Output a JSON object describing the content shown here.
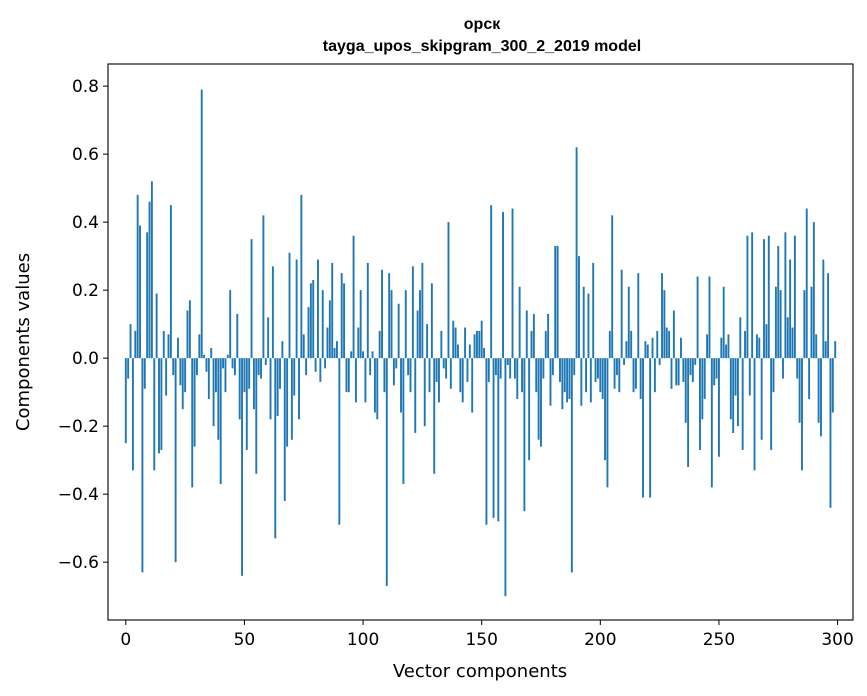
{
  "chart_data": {
    "type": "bar",
    "title": "орск",
    "subtitle": "tayga_upos_skipgram_300_2_2019 model",
    "xlabel": "Vector components",
    "ylabel": "Components values",
    "xlim": [
      -7.5,
      306.5
    ],
    "ylim": [
      -0.77,
      0.865
    ],
    "xticks": [
      0,
      50,
      100,
      150,
      200,
      250,
      300
    ],
    "xtick_labels": [
      "0",
      "50",
      "100",
      "150",
      "200",
      "250",
      "300"
    ],
    "yticks": [
      -0.6,
      -0.4,
      -0.2,
      0.0,
      0.2,
      0.4,
      0.6,
      0.8
    ],
    "ytick_labels": [
      "−0.6",
      "−0.4",
      "−0.2",
      "0.0",
      "0.2",
      "0.4",
      "0.6",
      "0.8"
    ],
    "bar_color": "#1f77b4",
    "x_start": 0,
    "values": [
      -0.25,
      -0.06,
      0.1,
      -0.33,
      0.08,
      0.48,
      0.39,
      -0.63,
      -0.09,
      0.37,
      0.46,
      0.52,
      -0.33,
      0.19,
      -0.28,
      -0.27,
      0.08,
      -0.11,
      0.07,
      0.45,
      -0.05,
      -0.6,
      0.06,
      -0.08,
      -0.15,
      -0.1,
      0.14,
      0.17,
      -0.38,
      -0.26,
      -0.05,
      0.07,
      0.79,
      0.01,
      -0.04,
      -0.12,
      0.03,
      -0.2,
      -0.1,
      -0.24,
      -0.37,
      -0.03,
      -0.1,
      0.01,
      0.2,
      -0.03,
      -0.05,
      0.13,
      -0.18,
      -0.64,
      -0.1,
      -0.27,
      -0.09,
      0.35,
      -0.15,
      -0.34,
      -0.05,
      -0.06,
      0.42,
      -0.02,
      0.12,
      -0.18,
      0.27,
      -0.53,
      -0.17,
      -0.09,
      0.05,
      -0.42,
      -0.26,
      0.31,
      -0.24,
      -0.11,
      0.29,
      -0.18,
      0.48,
      0.07,
      -0.05,
      0.15,
      0.22,
      0.23,
      -0.04,
      0.29,
      -0.07,
      0.2,
      -0.03,
      0.09,
      0.17,
      0.28,
      0.03,
      0.05,
      -0.49,
      0.25,
      0.22,
      -0.1,
      -0.1,
      0.02,
      0.36,
      -0.13,
      0.09,
      0.2,
      0.02,
      -0.13,
      0.28,
      -0.05,
      0.02,
      -0.16,
      -0.18,
      0.08,
      0.26,
      -0.1,
      -0.67,
      0.25,
      0.2,
      -0.08,
      -0.03,
      0.16,
      -0.16,
      -0.37,
      0.2,
      -0.05,
      -0.1,
      0.27,
      -0.22,
      0.14,
      0.2,
      0.28,
      -0.2,
      0.1,
      -0.1,
      0.22,
      -0.34,
      -0.07,
      -0.13,
      0.08,
      -0.03,
      -0.06,
      0.4,
      -0.09,
      0.11,
      0.09,
      0.04,
      -0.1,
      -0.13,
      0.09,
      -0.07,
      0.04,
      -0.16,
      0.07,
      0.08,
      0.08,
      0.11,
      0.03,
      -0.49,
      -0.07,
      0.45,
      -0.47,
      -0.05,
      -0.48,
      -0.06,
      0.43,
      -0.7,
      -0.02,
      -0.06,
      0.44,
      -0.06,
      -0.12,
      0.21,
      -0.1,
      -0.45,
      0.14,
      -0.3,
      0.08,
      0.13,
      -0.1,
      -0.24,
      -0.26,
      -0.06,
      0.08,
      0.13,
      -0.14,
      -0.05,
      0.33,
      0.33,
      -0.07,
      -0.15,
      -0.1,
      -0.13,
      -0.12,
      -0.63,
      -0.05,
      0.62,
      0.3,
      -0.14,
      0.21,
      -0.1,
      0.19,
      -0.13,
      0.28,
      -0.07,
      -0.06,
      -0.1,
      -0.12,
      -0.3,
      -0.38,
      0.08,
      0.42,
      -0.09,
      -0.05,
      -0.1,
      0.26,
      -0.02,
      0.05,
      0.21,
      0.08,
      -0.1,
      -0.09,
      0.25,
      -0.12,
      -0.41,
      0.05,
      0.04,
      -0.41,
      0.06,
      -0.1,
      0.08,
      -0.02,
      0.25,
      0.2,
      0.09,
      0.08,
      -0.09,
      0.14,
      -0.08,
      -0.08,
      0.06,
      -0.07,
      -0.19,
      -0.32,
      -0.05,
      -0.07,
      -0.02,
      0.24,
      -0.27,
      -0.18,
      -0.12,
      0.07,
      0.24,
      -0.38,
      -0.08,
      -0.06,
      -0.29,
      0.06,
      0.21,
      0.04,
      0.07,
      -0.18,
      -0.22,
      -0.11,
      -0.2,
      0.12,
      -0.27,
      0.08,
      0.36,
      -0.11,
      0.37,
      -0.33,
      0.07,
      0.06,
      -0.24,
      0.35,
      0.1,
      0.36,
      -0.27,
      -0.1,
      0.21,
      0.33,
      0.2,
      -0.06,
      0.37,
      0.12,
      0.29,
      0.09,
      0.36,
      -0.06,
      -0.19,
      -0.33,
      0.2,
      0.44,
      -0.12,
      0.21,
      0.4,
      0.07,
      -0.19,
      -0.23,
      0.29,
      0.05,
      0.25,
      -0.44,
      -0.16,
      0.05
    ]
  }
}
